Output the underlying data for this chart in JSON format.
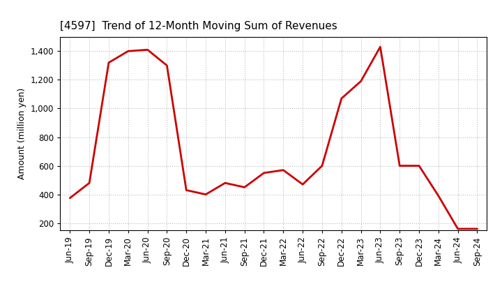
{
  "title": "[4597]  Trend of 12-Month Moving Sum of Revenues",
  "ylabel": "Amount (million yen)",
  "line_color": "#cc0000",
  "background_color": "#ffffff",
  "plot_bg_color": "#ffffff",
  "grid_color": "#aaaaaa",
  "x_labels": [
    "Jun-19",
    "Sep-19",
    "Dec-19",
    "Mar-20",
    "Jun-20",
    "Sep-20",
    "Dec-20",
    "Mar-21",
    "Jun-21",
    "Sep-21",
    "Dec-21",
    "Mar-22",
    "Jun-22",
    "Sep-22",
    "Dec-22",
    "Mar-23",
    "Jun-23",
    "Sep-23",
    "Dec-23",
    "Mar-24",
    "Jun-24",
    "Sep-24"
  ],
  "values": [
    375,
    480,
    1320,
    1400,
    1410,
    1300,
    430,
    400,
    480,
    450,
    550,
    570,
    470,
    600,
    1070,
    1190,
    1430,
    600,
    600,
    390,
    160,
    160
  ],
  "ylim": [
    150,
    1500
  ],
  "yticks": [
    200,
    400,
    600,
    800,
    1000,
    1200,
    1400
  ],
  "ytick_labels": [
    "200",
    "400",
    "600",
    "800",
    "1,000",
    "1,200",
    "1,400"
  ],
  "line_width": 2.0,
  "title_fontsize": 11,
  "axis_label_fontsize": 9,
  "tick_fontsize": 8.5
}
